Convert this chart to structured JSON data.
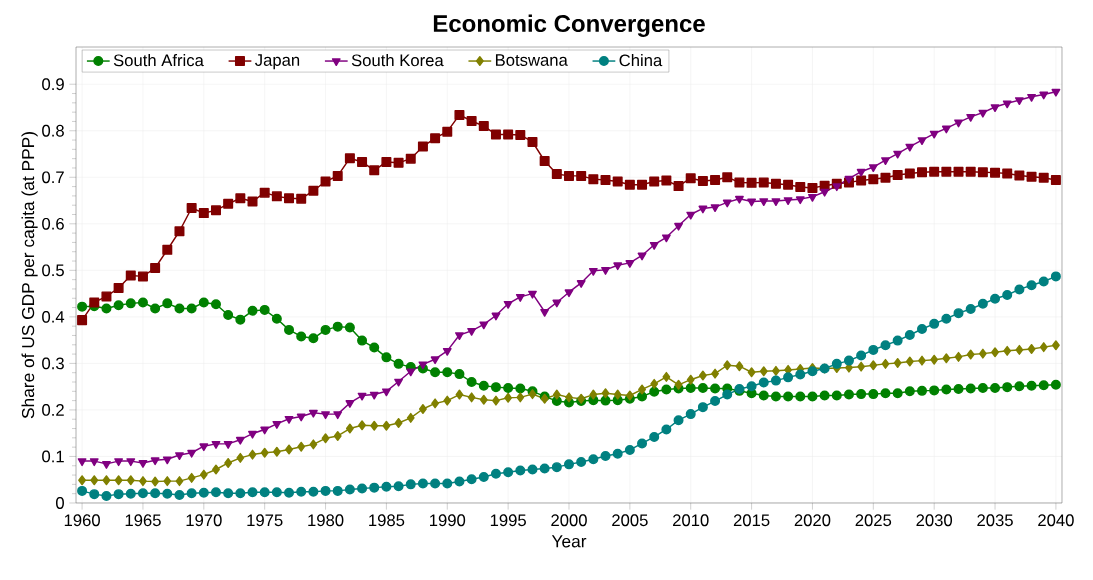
{
  "chart_data": {
    "type": "line",
    "title": "Economic Convergence",
    "xlabel": "Year",
    "ylabel": "Share of US GDP per capita (at PPP)",
    "x": [
      1960,
      1961,
      1962,
      1963,
      1964,
      1965,
      1966,
      1967,
      1968,
      1969,
      1970,
      1971,
      1972,
      1973,
      1974,
      1975,
      1976,
      1977,
      1978,
      1979,
      1980,
      1981,
      1982,
      1983,
      1984,
      1985,
      1986,
      1987,
      1988,
      1989,
      1990,
      1991,
      1992,
      1993,
      1994,
      1995,
      1996,
      1997,
      1998,
      1999,
      2000,
      2001,
      2002,
      2003,
      2004,
      2005,
      2006,
      2007,
      2008,
      2009,
      2010,
      2011,
      2012,
      2013,
      2014,
      2015,
      2016,
      2017,
      2018,
      2019,
      2020,
      2021,
      2022,
      2023,
      2024,
      2025,
      2026,
      2027,
      2028,
      2029,
      2030,
      2031,
      2032,
      2033,
      2034,
      2035,
      2036,
      2037,
      2038,
      2039,
      2040
    ],
    "xlim": [
      1959.5,
      2040.5
    ],
    "xticks": [
      1960,
      1965,
      1970,
      1975,
      1980,
      1985,
      1990,
      1995,
      2000,
      2005,
      2010,
      2015,
      2020,
      2025,
      2030,
      2035,
      2040
    ],
    "ylim": [
      0,
      0.98
    ],
    "yticks": [
      0,
      0.1,
      0.2,
      0.3,
      0.4,
      0.5,
      0.6,
      0.7,
      0.8,
      0.9
    ],
    "grid": true,
    "legend": "top",
    "line_style": "solid",
    "series": [
      {
        "name": "South Africa",
        "color": "#008000",
        "marker": "circle",
        "values": [
          0.422,
          0.423,
          0.418,
          0.425,
          0.429,
          0.431,
          0.418,
          0.429,
          0.418,
          0.418,
          0.431,
          0.427,
          0.404,
          0.394,
          0.413,
          0.415,
          0.396,
          0.372,
          0.358,
          0.354,
          0.372,
          0.379,
          0.377,
          0.349,
          0.334,
          0.313,
          0.299,
          0.292,
          0.289,
          0.281,
          0.281,
          0.277,
          0.26,
          0.252,
          0.249,
          0.247,
          0.246,
          0.24,
          0.229,
          0.219,
          0.216,
          0.219,
          0.221,
          0.22,
          0.221,
          0.224,
          0.229,
          0.239,
          0.244,
          0.246,
          0.247,
          0.247,
          0.246,
          0.246,
          0.241,
          0.236,
          0.231,
          0.229,
          0.229,
          0.229,
          0.229,
          0.231,
          0.231,
          0.233,
          0.234,
          0.234,
          0.236,
          0.236,
          0.24,
          0.241,
          0.242,
          0.244,
          0.245,
          0.246,
          0.247,
          0.247,
          0.249,
          0.251,
          0.252,
          0.253,
          0.254
        ]
      },
      {
        "name": "Japan",
        "color": "#800000",
        "marker": "square",
        "values": [
          0.393,
          0.431,
          0.444,
          0.462,
          0.489,
          0.487,
          0.505,
          0.544,
          0.584,
          0.634,
          0.623,
          0.629,
          0.643,
          0.655,
          0.648,
          0.667,
          0.659,
          0.655,
          0.654,
          0.671,
          0.691,
          0.703,
          0.741,
          0.733,
          0.715,
          0.733,
          0.731,
          0.74,
          0.766,
          0.784,
          0.798,
          0.834,
          0.821,
          0.81,
          0.792,
          0.792,
          0.791,
          0.776,
          0.735,
          0.707,
          0.703,
          0.703,
          0.696,
          0.694,
          0.691,
          0.684,
          0.684,
          0.691,
          0.693,
          0.681,
          0.698,
          0.692,
          0.694,
          0.7,
          0.689,
          0.688,
          0.689,
          0.686,
          0.684,
          0.679,
          0.677,
          0.682,
          0.686,
          0.689,
          0.693,
          0.696,
          0.699,
          0.705,
          0.708,
          0.711,
          0.712,
          0.712,
          0.712,
          0.712,
          0.711,
          0.71,
          0.708,
          0.704,
          0.701,
          0.699,
          0.694
        ]
      },
      {
        "name": "South Korea",
        "color": "#800080",
        "marker": "triangle",
        "values": [
          0.09,
          0.09,
          0.084,
          0.09,
          0.09,
          0.086,
          0.092,
          0.094,
          0.103,
          0.108,
          0.122,
          0.127,
          0.127,
          0.136,
          0.149,
          0.158,
          0.17,
          0.181,
          0.186,
          0.194,
          0.191,
          0.191,
          0.215,
          0.231,
          0.233,
          0.24,
          0.261,
          0.283,
          0.298,
          0.309,
          0.327,
          0.361,
          0.37,
          0.384,
          0.403,
          0.428,
          0.443,
          0.45,
          0.411,
          0.431,
          0.453,
          0.473,
          0.499,
          0.501,
          0.511,
          0.516,
          0.532,
          0.555,
          0.571,
          0.596,
          0.62,
          0.633,
          0.636,
          0.646,
          0.654,
          0.648,
          0.649,
          0.649,
          0.651,
          0.653,
          0.658,
          0.669,
          0.681,
          0.697,
          0.712,
          0.722,
          0.737,
          0.751,
          0.766,
          0.78,
          0.794,
          0.805,
          0.818,
          0.83,
          0.839,
          0.851,
          0.859,
          0.866,
          0.873,
          0.878,
          0.884
        ]
      },
      {
        "name": "Botswana",
        "color": "#808000",
        "marker": "diamond",
        "values": [
          0.049,
          0.049,
          0.049,
          0.049,
          0.049,
          0.047,
          0.046,
          0.047,
          0.047,
          0.054,
          0.061,
          0.072,
          0.086,
          0.097,
          0.104,
          0.108,
          0.11,
          0.115,
          0.121,
          0.126,
          0.139,
          0.144,
          0.16,
          0.167,
          0.166,
          0.166,
          0.172,
          0.183,
          0.202,
          0.214,
          0.22,
          0.233,
          0.227,
          0.222,
          0.22,
          0.226,
          0.227,
          0.234,
          0.224,
          0.233,
          0.227,
          0.224,
          0.233,
          0.236,
          0.233,
          0.231,
          0.244,
          0.256,
          0.271,
          0.254,
          0.265,
          0.274,
          0.278,
          0.296,
          0.294,
          0.281,
          0.283,
          0.284,
          0.286,
          0.288,
          0.29,
          0.289,
          0.29,
          0.291,
          0.293,
          0.296,
          0.299,
          0.301,
          0.304,
          0.306,
          0.308,
          0.311,
          0.314,
          0.319,
          0.321,
          0.324,
          0.327,
          0.329,
          0.331,
          0.335,
          0.339
        ]
      },
      {
        "name": "China",
        "color": "#008080",
        "marker": "circle",
        "values": [
          0.026,
          0.019,
          0.015,
          0.019,
          0.02,
          0.021,
          0.021,
          0.02,
          0.017,
          0.021,
          0.022,
          0.023,
          0.021,
          0.021,
          0.023,
          0.023,
          0.023,
          0.022,
          0.024,
          0.024,
          0.026,
          0.026,
          0.029,
          0.031,
          0.033,
          0.035,
          0.036,
          0.04,
          0.042,
          0.042,
          0.042,
          0.046,
          0.051,
          0.056,
          0.063,
          0.066,
          0.07,
          0.072,
          0.074,
          0.077,
          0.083,
          0.088,
          0.094,
          0.101,
          0.106,
          0.114,
          0.128,
          0.142,
          0.158,
          0.178,
          0.191,
          0.206,
          0.219,
          0.233,
          0.245,
          0.251,
          0.259,
          0.263,
          0.27,
          0.276,
          0.283,
          0.289,
          0.299,
          0.306,
          0.317,
          0.329,
          0.339,
          0.349,
          0.361,
          0.374,
          0.385,
          0.396,
          0.408,
          0.417,
          0.428,
          0.439,
          0.447,
          0.459,
          0.468,
          0.476,
          0.487
        ]
      }
    ]
  }
}
